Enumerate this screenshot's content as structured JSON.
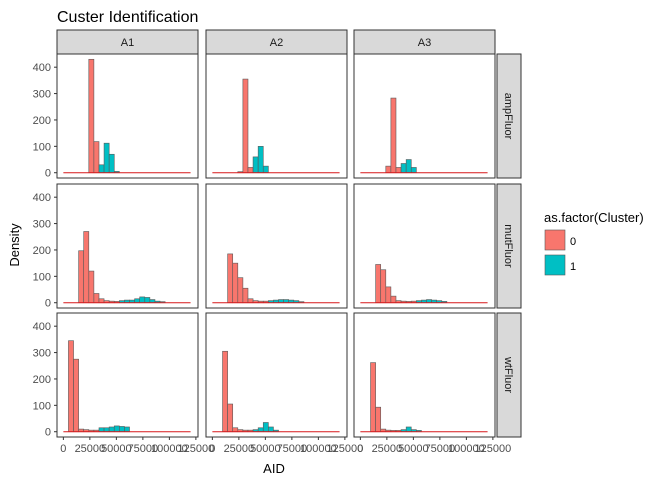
{
  "chart_data": {
    "type": "bar",
    "subtype": "faceted-histogram",
    "title": "Custer Identification",
    "xlabel": "AID",
    "ylabel": "Density",
    "xlim": [
      -6000,
      127000
    ],
    "ylim": [
      -20,
      450
    ],
    "x_ticks": [
      0,
      25000,
      50000,
      75000,
      100000,
      125000
    ],
    "x_tick_labels": [
      "0",
      "25000",
      "50000",
      "75000",
      "100000",
      "125000"
    ],
    "y_ticks": [
      0,
      100,
      200,
      300,
      400
    ],
    "y_tick_labels": [
      "0",
      "100",
      "200",
      "300",
      "400"
    ],
    "bin_width": 4800,
    "facet_cols": [
      "A1",
      "A2",
      "A3"
    ],
    "facet_rows": [
      "ampFluor",
      "mutFluor",
      "wtFluor"
    ],
    "legend": {
      "title": "as.factor(Cluster)",
      "position": "right",
      "entries": [
        {
          "label": "0",
          "color": "#F8766D"
        },
        {
          "label": "1",
          "color": "#00BFC4"
        }
      ]
    },
    "baseline": {
      "from": 0,
      "to": 120000,
      "color": "#D7191C"
    },
    "colors": {
      "0": "#F8766D",
      "1": "#00BFC4",
      "outline": "#595959",
      "strip": "#D9D9D9",
      "frame": "#333333"
    },
    "panels": [
      {
        "col": "A1",
        "row": "ampFluor",
        "bars": [
          {
            "x": 24000,
            "y": 430,
            "cluster": 0
          },
          {
            "x": 28800,
            "y": 118,
            "cluster": 0
          },
          {
            "x": 33600,
            "y": 30,
            "cluster": 1
          },
          {
            "x": 38400,
            "y": 112,
            "cluster": 1
          },
          {
            "x": 43200,
            "y": 70,
            "cluster": 1
          },
          {
            "x": 48000,
            "y": 5,
            "cluster": 1
          }
        ]
      },
      {
        "col": "A2",
        "row": "ampFluor",
        "bars": [
          {
            "x": 24000,
            "y": 4,
            "cluster": 0
          },
          {
            "x": 28800,
            "y": 355,
            "cluster": 0
          },
          {
            "x": 33600,
            "y": 20,
            "cluster": 0
          },
          {
            "x": 38400,
            "y": 60,
            "cluster": 1
          },
          {
            "x": 43200,
            "y": 100,
            "cluster": 1
          },
          {
            "x": 48000,
            "y": 25,
            "cluster": 1
          }
        ]
      },
      {
        "col": "A3",
        "row": "ampFluor",
        "bars": [
          {
            "x": 24000,
            "y": 25,
            "cluster": 0
          },
          {
            "x": 28800,
            "y": 283,
            "cluster": 0
          },
          {
            "x": 33600,
            "y": 20,
            "cluster": 0
          },
          {
            "x": 38400,
            "y": 35,
            "cluster": 1
          },
          {
            "x": 43200,
            "y": 50,
            "cluster": 1
          },
          {
            "x": 48000,
            "y": 20,
            "cluster": 1
          }
        ]
      },
      {
        "col": "A1",
        "row": "mutFluor",
        "bars": [
          {
            "x": 14400,
            "y": 197,
            "cluster": 0
          },
          {
            "x": 19200,
            "y": 270,
            "cluster": 0
          },
          {
            "x": 24000,
            "y": 120,
            "cluster": 0
          },
          {
            "x": 28800,
            "y": 35,
            "cluster": 0
          },
          {
            "x": 33600,
            "y": 15,
            "cluster": 0
          },
          {
            "x": 38400,
            "y": 8,
            "cluster": 0
          },
          {
            "x": 43200,
            "y": 6,
            "cluster": 0
          },
          {
            "x": 48000,
            "y": 5,
            "cluster": 0
          },
          {
            "x": 52800,
            "y": 8,
            "cluster": 1
          },
          {
            "x": 57600,
            "y": 10,
            "cluster": 1
          },
          {
            "x": 62400,
            "y": 10,
            "cluster": 1
          },
          {
            "x": 67200,
            "y": 15,
            "cluster": 1
          },
          {
            "x": 72000,
            "y": 22,
            "cluster": 1
          },
          {
            "x": 76800,
            "y": 20,
            "cluster": 1
          },
          {
            "x": 81600,
            "y": 12,
            "cluster": 1
          },
          {
            "x": 86400,
            "y": 6,
            "cluster": 1
          },
          {
            "x": 91200,
            "y": 4,
            "cluster": 1
          }
        ]
      },
      {
        "col": "A2",
        "row": "mutFluor",
        "bars": [
          {
            "x": 14400,
            "y": 185,
            "cluster": 0
          },
          {
            "x": 19200,
            "y": 150,
            "cluster": 0
          },
          {
            "x": 24000,
            "y": 95,
            "cluster": 0
          },
          {
            "x": 28800,
            "y": 55,
            "cluster": 0
          },
          {
            "x": 33600,
            "y": 15,
            "cluster": 0
          },
          {
            "x": 38400,
            "y": 8,
            "cluster": 0
          },
          {
            "x": 43200,
            "y": 6,
            "cluster": 0
          },
          {
            "x": 48000,
            "y": 6,
            "cluster": 0
          },
          {
            "x": 52800,
            "y": 8,
            "cluster": 1
          },
          {
            "x": 57600,
            "y": 10,
            "cluster": 1
          },
          {
            "x": 62400,
            "y": 12,
            "cluster": 1
          },
          {
            "x": 67200,
            "y": 12,
            "cluster": 1
          },
          {
            "x": 72000,
            "y": 10,
            "cluster": 1
          },
          {
            "x": 76800,
            "y": 8,
            "cluster": 1
          },
          {
            "x": 81600,
            "y": 4,
            "cluster": 1
          }
        ]
      },
      {
        "col": "A3",
        "row": "mutFluor",
        "bars": [
          {
            "x": 14400,
            "y": 145,
            "cluster": 0
          },
          {
            "x": 19200,
            "y": 125,
            "cluster": 0
          },
          {
            "x": 24000,
            "y": 60,
            "cluster": 0
          },
          {
            "x": 28800,
            "y": 25,
            "cluster": 0
          },
          {
            "x": 33600,
            "y": 8,
            "cluster": 0
          },
          {
            "x": 38400,
            "y": 6,
            "cluster": 0
          },
          {
            "x": 43200,
            "y": 5,
            "cluster": 0
          },
          {
            "x": 48000,
            "y": 6,
            "cluster": 0
          },
          {
            "x": 52800,
            "y": 8,
            "cluster": 1
          },
          {
            "x": 57600,
            "y": 10,
            "cluster": 1
          },
          {
            "x": 62400,
            "y": 12,
            "cluster": 1
          },
          {
            "x": 67200,
            "y": 10,
            "cluster": 1
          },
          {
            "x": 72000,
            "y": 8,
            "cluster": 1
          },
          {
            "x": 76800,
            "y": 5,
            "cluster": 1
          }
        ]
      },
      {
        "col": "A1",
        "row": "wtFluor",
        "bars": [
          {
            "x": 4800,
            "y": 345,
            "cluster": 0
          },
          {
            "x": 9600,
            "y": 275,
            "cluster": 0
          },
          {
            "x": 14400,
            "y": 10,
            "cluster": 0
          },
          {
            "x": 19200,
            "y": 8,
            "cluster": 0
          },
          {
            "x": 24000,
            "y": 6,
            "cluster": 0
          },
          {
            "x": 28800,
            "y": 6,
            "cluster": 0
          },
          {
            "x": 33600,
            "y": 15,
            "cluster": 1
          },
          {
            "x": 38400,
            "y": 15,
            "cluster": 1
          },
          {
            "x": 43200,
            "y": 18,
            "cluster": 1
          },
          {
            "x": 48000,
            "y": 22,
            "cluster": 1
          },
          {
            "x": 52800,
            "y": 20,
            "cluster": 1
          },
          {
            "x": 57600,
            "y": 18,
            "cluster": 1
          }
        ]
      },
      {
        "col": "A2",
        "row": "wtFluor",
        "bars": [
          {
            "x": 9600,
            "y": 305,
            "cluster": 0
          },
          {
            "x": 14400,
            "y": 105,
            "cluster": 0
          },
          {
            "x": 19200,
            "y": 15,
            "cluster": 0
          },
          {
            "x": 24000,
            "y": 8,
            "cluster": 0
          },
          {
            "x": 28800,
            "y": 6,
            "cluster": 0
          },
          {
            "x": 33600,
            "y": 6,
            "cluster": 0
          },
          {
            "x": 38400,
            "y": 8,
            "cluster": 1
          },
          {
            "x": 43200,
            "y": 15,
            "cluster": 1
          },
          {
            "x": 48000,
            "y": 35,
            "cluster": 1
          },
          {
            "x": 52800,
            "y": 18,
            "cluster": 1
          },
          {
            "x": 57600,
            "y": 6,
            "cluster": 1
          }
        ]
      },
      {
        "col": "A3",
        "row": "wtFluor",
        "bars": [
          {
            "x": 9600,
            "y": 262,
            "cluster": 0
          },
          {
            "x": 14400,
            "y": 93,
            "cluster": 0
          },
          {
            "x": 19200,
            "y": 10,
            "cluster": 0
          },
          {
            "x": 24000,
            "y": 6,
            "cluster": 0
          },
          {
            "x": 28800,
            "y": 5,
            "cluster": 0
          },
          {
            "x": 33600,
            "y": 5,
            "cluster": 0
          },
          {
            "x": 38400,
            "y": 8,
            "cluster": 1
          },
          {
            "x": 43200,
            "y": 18,
            "cluster": 1
          },
          {
            "x": 48000,
            "y": 8,
            "cluster": 1
          },
          {
            "x": 52800,
            "y": 5,
            "cluster": 1
          }
        ]
      }
    ]
  }
}
